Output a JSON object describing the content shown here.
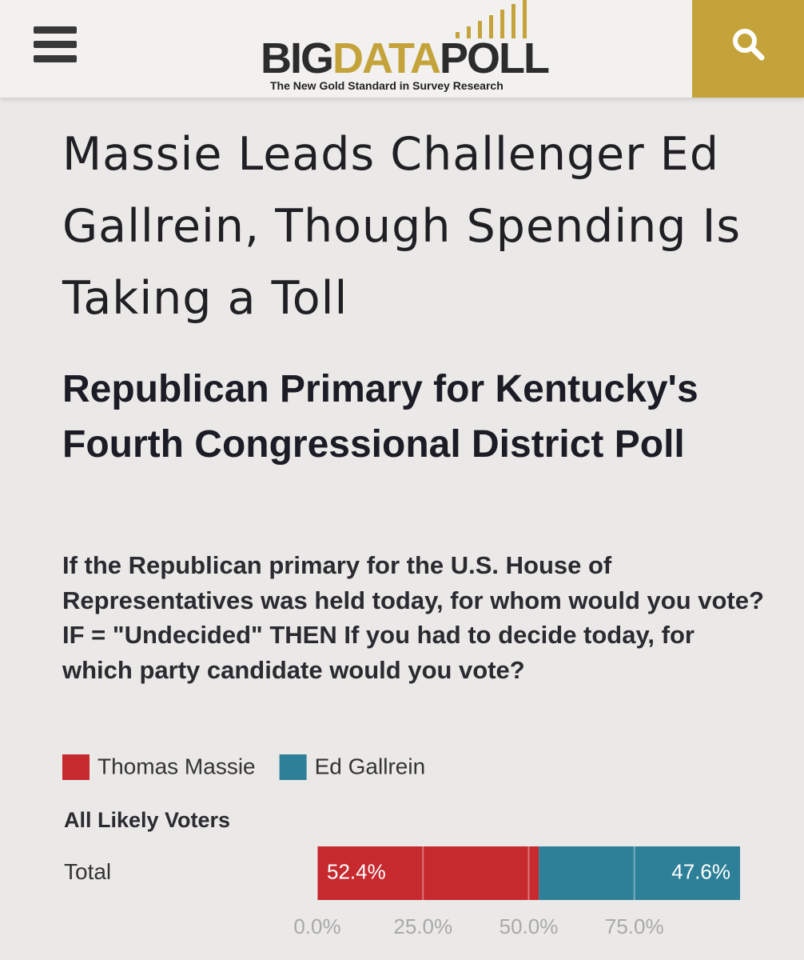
{
  "header": {
    "logo": [
      "BIG",
      "DATA",
      "POLL"
    ],
    "tagline": "The New Gold Standard in Survey Research"
  },
  "article": {
    "title": "Massie Leads Challenger Ed Gallrein, Though Spending Is Taking a Toll"
  },
  "chart_data": {
    "type": "stacked-bar-horizontal",
    "title": "Republican Primary for Kentucky's Fourth Congressional District Poll",
    "question": [
      "If the Republican primary for the U.S. House of Representatives was held today, for whom would you vote?",
      "IF = \"Undecided\" THEN If you had to decide today, for which party candidate would you vote?"
    ],
    "group": "All Likely Voters",
    "categories": [
      "Total"
    ],
    "series": [
      {
        "name": "Thomas Massie",
        "color": "#c62a2f",
        "values": [
          52.4
        ],
        "value_labels": [
          "52.4%"
        ]
      },
      {
        "name": "Ed Gallrein",
        "color": "#2e8098",
        "values": [
          47.6
        ],
        "value_labels": [
          "47.6%"
        ]
      }
    ],
    "xlim": [
      0,
      100
    ],
    "xticks": [
      {
        "value": 0,
        "label": "0.0%"
      },
      {
        "value": 25,
        "label": "25.0%"
      },
      {
        "value": 50,
        "label": "50.0%"
      },
      {
        "value": 75,
        "label": "75.0%"
      }
    ],
    "grid": true
  }
}
